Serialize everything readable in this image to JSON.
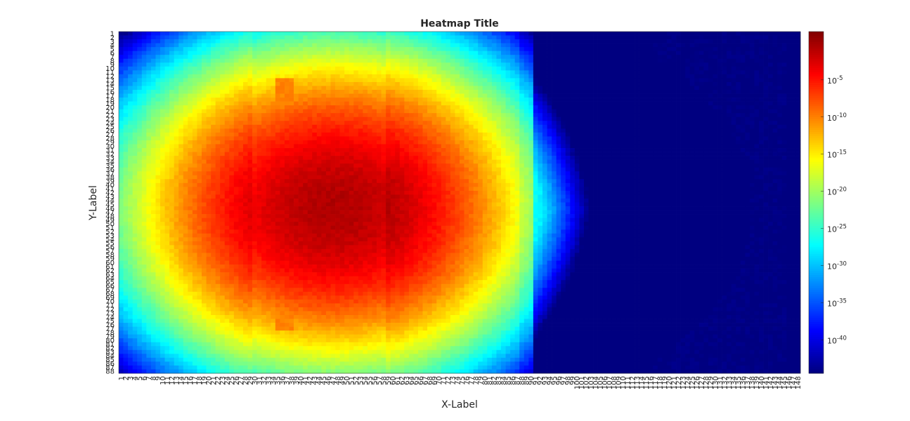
{
  "chart_data": {
    "type": "heatmap",
    "title": "Heatmap Title",
    "xlabel": "X-Label",
    "ylabel": "Y-Label",
    "x_range": [
      1,
      148
    ],
    "y_range": [
      1,
      88
    ],
    "x_tick_step": 1,
    "y_tick_step": 1,
    "colormap": "jet",
    "colorbar": {
      "scale": "log",
      "range_exponent": [
        -44.5,
        1.5
      ],
      "tick_labels": [
        "10-5",
        "10-10",
        "10-15",
        "10-20",
        "10-25",
        "10-30",
        "10-35",
        "10-40"
      ],
      "tick_exponents": [
        -5,
        -10,
        -15,
        -20,
        -25,
        -30,
        -35,
        -40
      ]
    },
    "field_model": {
      "description_of_shape": "radial log-scale decay centered near column 47 row 46; columns up to 90 stay high, beyond 90 values fall steeply to the floor",
      "center": [
        47,
        46
      ],
      "inner_edge_col": 90,
      "floor_exponent": -44.5,
      "peak_exponent": 0.5
    }
  }
}
